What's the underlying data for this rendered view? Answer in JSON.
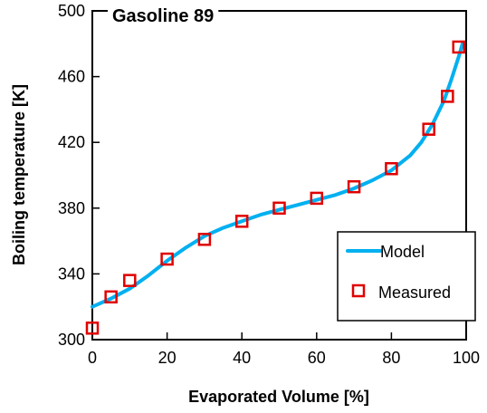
{
  "chart_data": {
    "type": "line",
    "title": "Gasoline 89",
    "xlabel": "Evaporated Volume [%]",
    "ylabel": "Boiling temperature [K]",
    "xlim": [
      0,
      100
    ],
    "ylim": [
      300,
      500
    ],
    "xticks": [
      0,
      20,
      40,
      60,
      80,
      100
    ],
    "yticks": [
      300,
      340,
      380,
      420,
      460,
      500
    ],
    "grid": false,
    "legend_position": "bottom-right",
    "series": [
      {
        "name": "Model",
        "style": "line",
        "color": "#00b0f0",
        "x": [
          0,
          2,
          5,
          10,
          15,
          20,
          25,
          30,
          35,
          40,
          45,
          50,
          55,
          60,
          65,
          70,
          75,
          80,
          85,
          88,
          91,
          94,
          96,
          98,
          99
        ],
        "y": [
          320,
          322,
          325,
          331,
          339,
          348,
          356,
          363,
          368,
          372,
          376,
          379,
          382,
          385,
          388,
          392,
          397,
          403,
          412,
          420,
          431,
          445,
          458,
          472,
          480
        ]
      },
      {
        "name": "Measured",
        "style": "marker-square",
        "color": "#e00000",
        "x": [
          0,
          5,
          10,
          20,
          30,
          40,
          50,
          60,
          70,
          80,
          90,
          95,
          98
        ],
        "y": [
          307,
          326,
          336,
          349,
          361,
          372,
          380,
          386,
          393,
          404,
          428,
          448,
          478
        ]
      }
    ]
  }
}
